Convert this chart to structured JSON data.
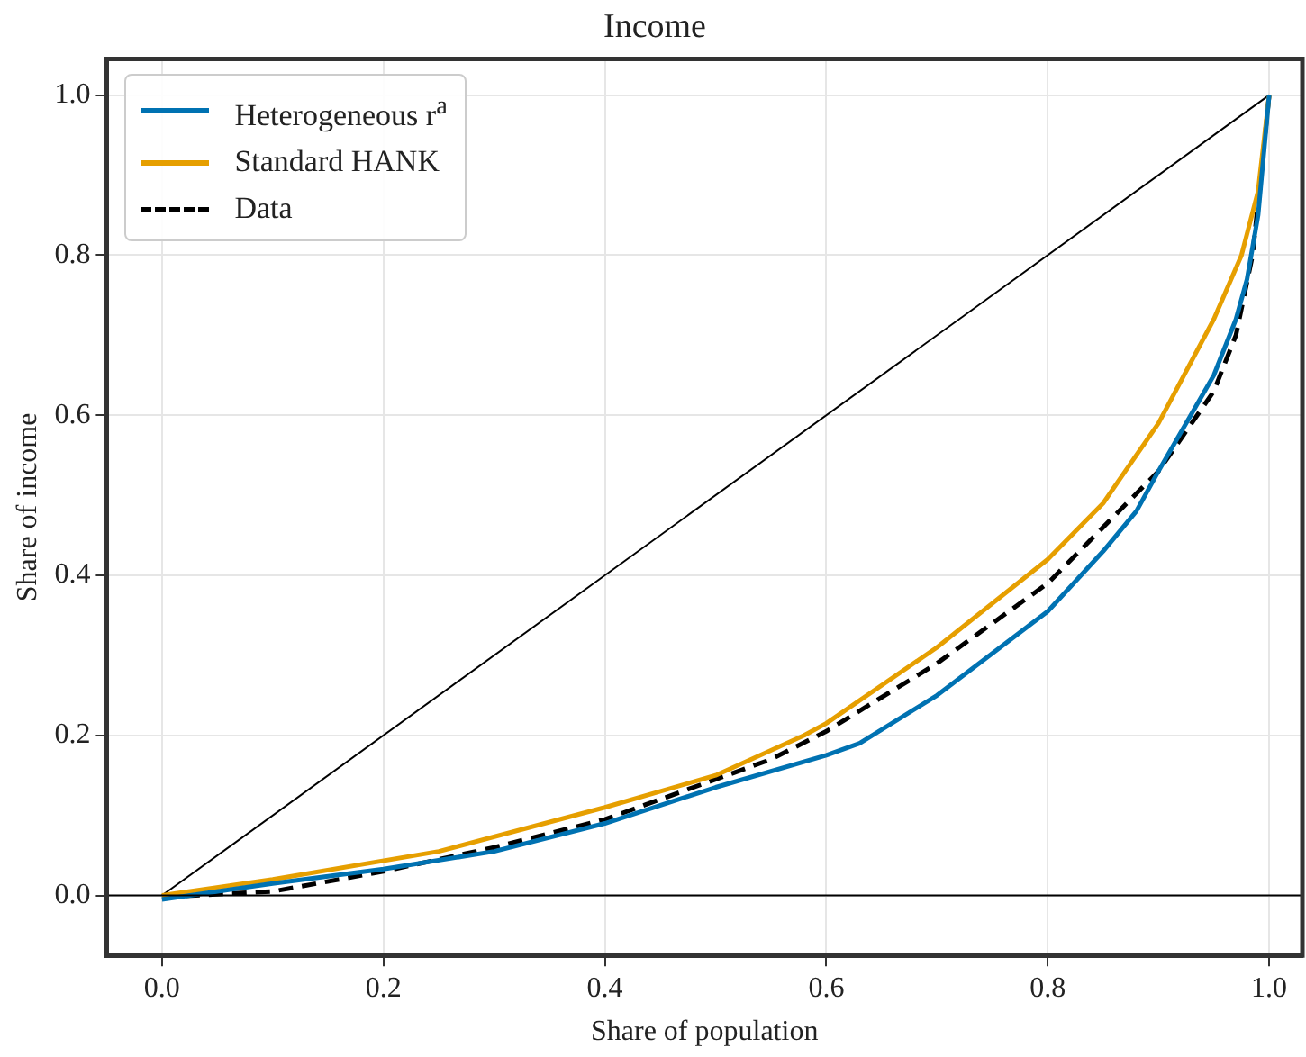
{
  "chart_data": {
    "type": "line",
    "title": "Income",
    "xlabel": "Share of population",
    "ylabel": "Share of income",
    "xlim": [
      -0.05,
      1.03
    ],
    "ylim": [
      -0.075,
      1.045
    ],
    "xticks": [
      {
        "value": 0,
        "label": "0.0"
      },
      {
        "value": 0.2,
        "label": "0.2"
      },
      {
        "value": 0.4,
        "label": "0.4"
      },
      {
        "value": 0.6,
        "label": "0.6"
      },
      {
        "value": 0.8,
        "label": "0.8"
      },
      {
        "value": 1,
        "label": "1.0"
      }
    ],
    "yticks": [
      {
        "value": 0,
        "label": "0.0"
      },
      {
        "value": 0.2,
        "label": "0.2"
      },
      {
        "value": 0.4,
        "label": "0.4"
      },
      {
        "value": 0.6,
        "label": "0.6"
      },
      {
        "value": 0.8,
        "label": "0.8"
      },
      {
        "value": 1,
        "label": "1.0"
      }
    ],
    "grid": true,
    "legend": "top left",
    "marker": "none",
    "ref_lines": [
      {
        "axis": "y",
        "value": 0,
        "color": "#000000"
      }
    ],
    "series": [
      {
        "name": "Heterogeneous r$^{a}$",
        "color": "#0072b2",
        "line_style": "solid",
        "x": [
          0,
          0.1,
          0.2,
          0.3,
          0.4,
          0.5,
          0.6,
          0.63,
          0.7,
          0.8,
          0.85,
          0.88,
          0.9,
          0.95,
          0.97,
          0.98,
          0.99,
          1
        ],
        "values": [
          -0.005,
          0.015,
          0.033,
          0.055,
          0.09,
          0.135,
          0.175,
          0.19,
          0.25,
          0.355,
          0.43,
          0.48,
          0.53,
          0.65,
          0.72,
          0.77,
          0.85,
          1
        ]
      },
      {
        "name": "Standard HANK",
        "color": "#e69f00",
        "line_style": "solid",
        "x": [
          0,
          0.1,
          0.25,
          0.4,
          0.5,
          0.58,
          0.6,
          0.7,
          0.8,
          0.85,
          0.87,
          0.9,
          0.95,
          0.975,
          0.99,
          1
        ],
        "values": [
          0,
          0.02,
          0.055,
          0.11,
          0.15,
          0.2,
          0.215,
          0.31,
          0.42,
          0.49,
          0.53,
          0.59,
          0.72,
          0.8,
          0.88,
          1
        ]
      },
      {
        "name": "Data",
        "color": "#000000",
        "line_style": "dashed",
        "x": [
          0,
          0.1,
          0.2,
          0.3,
          0.4,
          0.5,
          0.55,
          0.6,
          0.7,
          0.8,
          0.85,
          0.9,
          0.95,
          0.97,
          0.985,
          1
        ],
        "values": [
          -0.002,
          0.005,
          0.03,
          0.06,
          0.095,
          0.145,
          0.17,
          0.205,
          0.29,
          0.39,
          0.46,
          0.53,
          0.63,
          0.7,
          0.8,
          1
        ]
      },
      {
        "type": "line",
        "color": "#000000",
        "line_style": "solid",
        "x": [
          0,
          1
        ],
        "values": [
          0,
          1
        ]
      }
    ]
  }
}
